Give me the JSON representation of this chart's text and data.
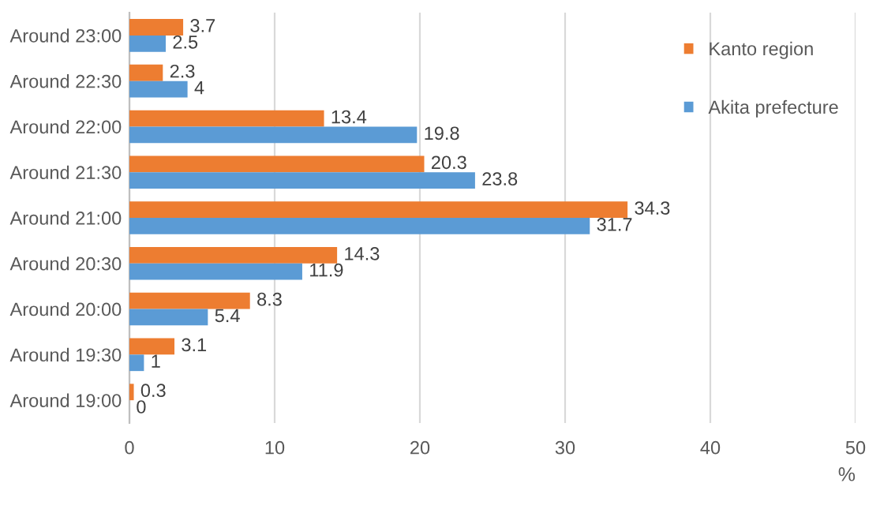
{
  "chart_data": {
    "type": "bar",
    "orientation": "horizontal",
    "categories": [
      "Around 23:00",
      "Around 22:30",
      "Around 22:00",
      "Around 21:30",
      "Around 21:00",
      "Around 20:30",
      "Around 20:00",
      "Around 19:30",
      "Around 19:00"
    ],
    "series": [
      {
        "name": "Kanto region",
        "color": "#ed7d31",
        "values": [
          3.7,
          2.3,
          13.4,
          20.3,
          34.3,
          14.3,
          8.3,
          3.1,
          0.3
        ]
      },
      {
        "name": "Akita prefecture",
        "color": "#5b9bd5",
        "values": [
          2.5,
          4,
          19.8,
          23.8,
          31.7,
          11.9,
          5.4,
          1,
          0
        ]
      }
    ],
    "xlim": [
      0,
      50
    ],
    "xticks": [
      0,
      10,
      20,
      30,
      40,
      50
    ],
    "xlabel": "%",
    "grid": "x",
    "legend": "top right",
    "data_labels": true
  }
}
